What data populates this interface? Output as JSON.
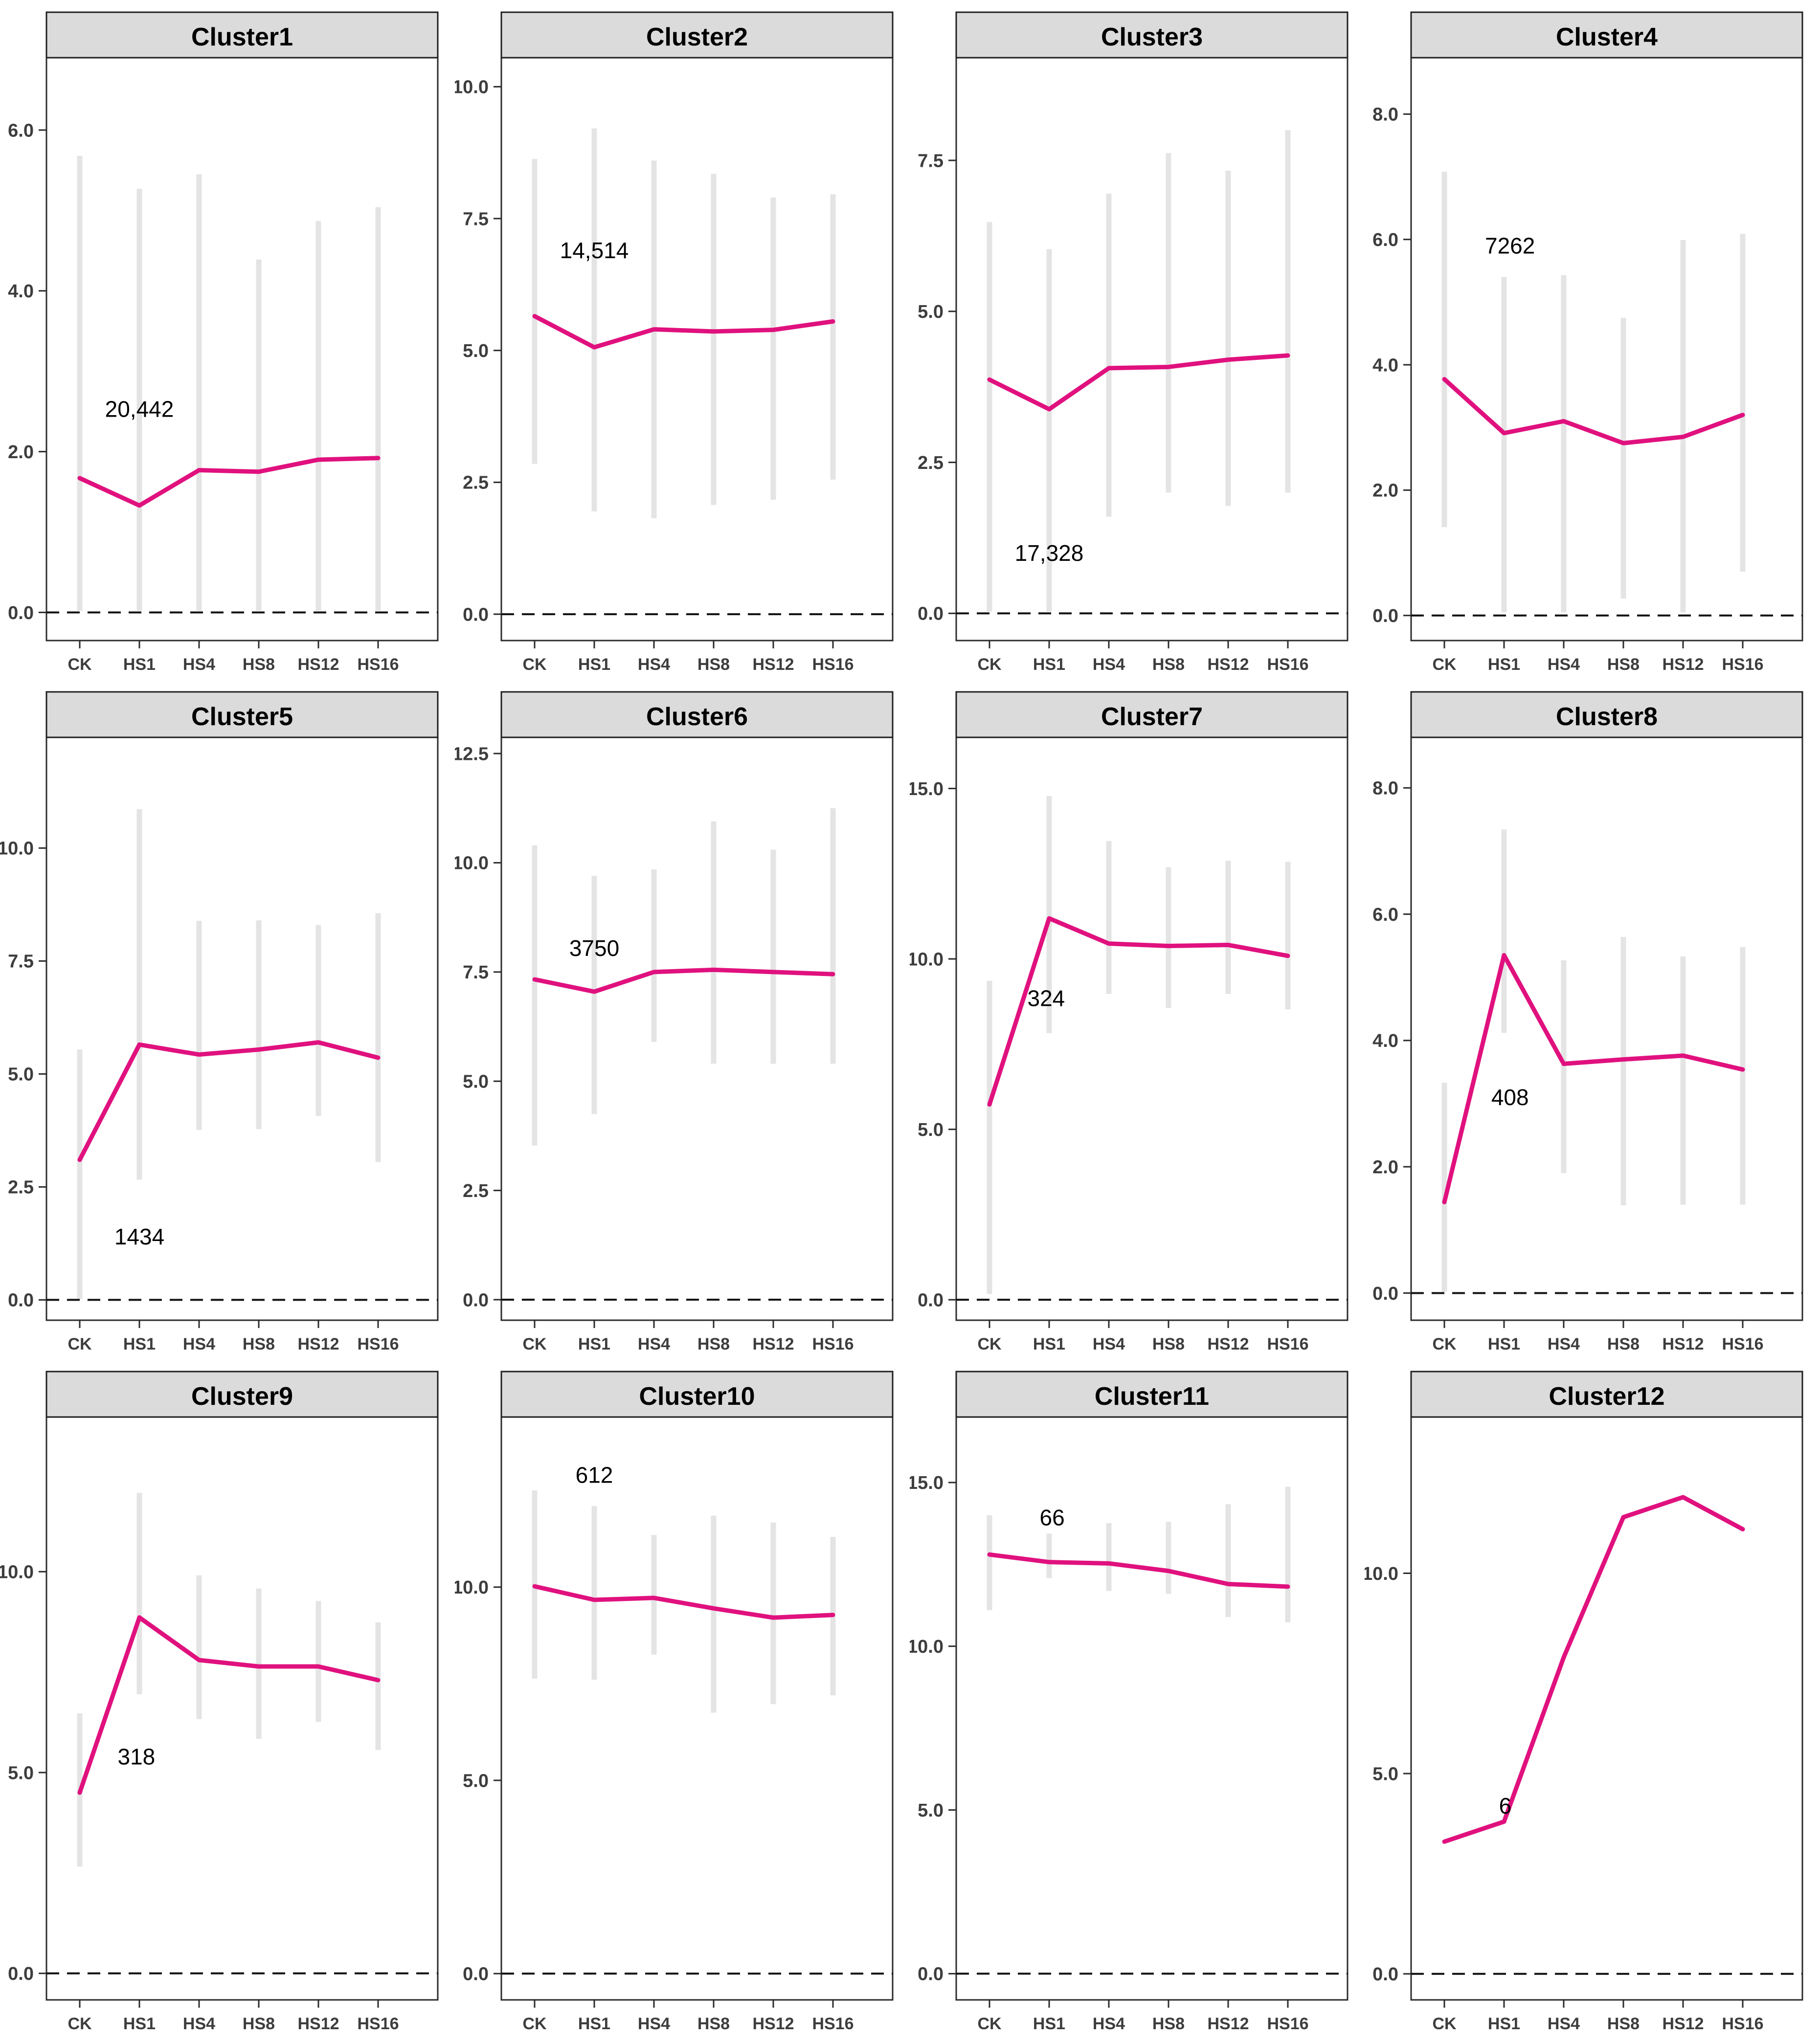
{
  "figure": {
    "title": "Cluster expression trend facets",
    "categories": [
      "CK",
      "HS1",
      "HS4",
      "HS8",
      "HS12",
      "HS16"
    ],
    "colors": {
      "line": "#E0117E",
      "error_bar": "#E4E4E4",
      "strip_bg": "#DBDBDB",
      "strip_border": "#1f1f1f",
      "panel_border": "#2b2b2b",
      "panel_bg": "#ffffff",
      "axis_text": "#3d3d3d",
      "strip_text": "#000000",
      "annotation_text": "#000000",
      "zero_line": "#111111"
    }
  },
  "chart_data": [
    {
      "type": "line",
      "title": "Cluster1",
      "categories": [
        "CK",
        "HS1",
        "HS4",
        "HS8",
        "HS12",
        "HS16"
      ],
      "values": [
        1.67,
        1.33,
        1.77,
        1.75,
        1.9,
        1.92
      ],
      "err_low": [
        0.02,
        0.02,
        0.02,
        0.02,
        0.02,
        0.02
      ],
      "err_high": [
        5.68,
        5.27,
        5.45,
        4.39,
        4.87,
        5.04
      ],
      "yticks": [
        0,
        2,
        4,
        6
      ],
      "ytick_labels": [
        "0.0",
        "2.0",
        "4.0",
        "6.0"
      ],
      "ylim": [
        -0.35,
        6.9
      ],
      "annotation": {
        "text": "20,442",
        "x": 1,
        "y": 2.53
      }
    },
    {
      "type": "line",
      "title": "Cluster2",
      "categories": [
        "CK",
        "HS1",
        "HS4",
        "HS8",
        "HS12",
        "HS16"
      ],
      "values": [
        5.65,
        5.06,
        5.4,
        5.36,
        5.39,
        5.55
      ],
      "err_low": [
        2.85,
        1.95,
        1.82,
        2.07,
        2.17,
        2.55
      ],
      "err_high": [
        8.63,
        9.21,
        8.6,
        8.35,
        7.9,
        7.96
      ],
      "yticks": [
        0,
        2.5,
        5,
        7.5,
        10
      ],
      "ytick_labels": [
        "0.0",
        "2.5",
        "5.0",
        "7.5",
        "10.0"
      ],
      "ylim": [
        -0.5,
        10.55
      ],
      "annotation": {
        "text": "14,514",
        "x": 1,
        "y": 6.9
      }
    },
    {
      "type": "line",
      "title": "Cluster3",
      "categories": [
        "CK",
        "HS1",
        "HS4",
        "HS8",
        "HS12",
        "HS16"
      ],
      "values": [
        3.87,
        3.38,
        4.06,
        4.08,
        4.2,
        4.27
      ],
      "err_low": [
        0.03,
        0.03,
        1.6,
        2.0,
        1.78,
        2.0
      ],
      "err_high": [
        6.48,
        6.03,
        6.95,
        7.62,
        7.33,
        8.0
      ],
      "yticks": [
        0,
        2.5,
        5,
        7.5
      ],
      "ytick_labels": [
        "0.0",
        "2.5",
        "5.0",
        "7.5"
      ],
      "ylim": [
        -0.45,
        9.2
      ],
      "annotation": {
        "text": "17,328",
        "x": 1,
        "y": 1.0
      }
    },
    {
      "type": "line",
      "title": "Cluster4",
      "categories": [
        "CK",
        "HS1",
        "HS4",
        "HS8",
        "HS12",
        "HS16"
      ],
      "values": [
        3.77,
        2.91,
        3.1,
        2.75,
        2.85,
        3.2
      ],
      "err_low": [
        1.41,
        0.05,
        0.05,
        0.27,
        0.05,
        0.7
      ],
      "err_high": [
        7.08,
        5.4,
        5.43,
        4.75,
        5.99,
        6.09
      ],
      "yticks": [
        0,
        2,
        4,
        6,
        8
      ],
      "ytick_labels": [
        "0.0",
        "2.0",
        "4.0",
        "6.0",
        "8.0"
      ],
      "ylim": [
        -0.4,
        8.9
      ],
      "annotation": {
        "text": "7262",
        "x": 1.1,
        "y": 5.9
      }
    },
    {
      "type": "line",
      "title": "Cluster5",
      "categories": [
        "CK",
        "HS1",
        "HS4",
        "HS8",
        "HS12",
        "HS16"
      ],
      "values": [
        3.1,
        5.65,
        5.43,
        5.54,
        5.7,
        5.36
      ],
      "err_low": [
        0.02,
        2.66,
        3.76,
        3.78,
        4.07,
        3.05
      ],
      "err_high": [
        5.54,
        10.86,
        8.39,
        8.4,
        8.3,
        8.56
      ],
      "yticks": [
        0,
        2.5,
        5,
        7.5,
        10
      ],
      "ytick_labels": [
        "0.0",
        "2.5",
        "5.0",
        "7.5",
        "10.0"
      ],
      "ylim": [
        -0.45,
        12.45
      ],
      "annotation": {
        "text": "1434",
        "x": 1,
        "y": 1.4
      }
    },
    {
      "type": "line",
      "title": "Cluster6",
      "categories": [
        "CK",
        "HS1",
        "HS4",
        "HS8",
        "HS12",
        "HS16"
      ],
      "values": [
        7.33,
        7.05,
        7.5,
        7.55,
        7.5,
        7.45
      ],
      "err_low": [
        3.53,
        4.25,
        5.9,
        5.4,
        5.4,
        5.4
      ],
      "err_high": [
        10.4,
        9.7,
        9.85,
        10.95,
        10.3,
        11.25
      ],
      "yticks": [
        0,
        2.5,
        5,
        7.5,
        10,
        12.5
      ],
      "ytick_labels": [
        "0.0",
        "2.5",
        "5.0",
        "7.5",
        "10.0",
        "12.5"
      ],
      "ylim": [
        -0.47,
        12.87
      ],
      "annotation": {
        "text": "3750",
        "x": 1,
        "y": 8.05
      }
    },
    {
      "type": "line",
      "title": "Cluster7",
      "categories": [
        "CK",
        "HS1",
        "HS4",
        "HS8",
        "HS12",
        "HS16"
      ],
      "values": [
        5.73,
        11.19,
        10.45,
        10.38,
        10.41,
        10.09
      ],
      "err_low": [
        0.17,
        7.82,
        8.97,
        8.56,
        8.97,
        8.52
      ],
      "err_high": [
        9.36,
        14.78,
        13.46,
        12.69,
        12.88,
        12.85
      ],
      "yticks": [
        0,
        5,
        10,
        15
      ],
      "ytick_labels": [
        "0.0",
        "5.0",
        "10.0",
        "15.0"
      ],
      "ylim": [
        -0.6,
        16.5
      ],
      "annotation": {
        "text": "324",
        "x": 0.95,
        "y": 8.85
      }
    },
    {
      "type": "line",
      "title": "Cluster8",
      "categories": [
        "CK",
        "HS1",
        "HS4",
        "HS8",
        "HS12",
        "HS16"
      ],
      "values": [
        1.44,
        5.35,
        3.63,
        3.7,
        3.76,
        3.54
      ],
      "err_low": [
        0.02,
        4.12,
        1.9,
        1.39,
        1.4,
        1.4
      ],
      "err_high": [
        3.33,
        7.34,
        5.27,
        5.64,
        5.33,
        5.48
      ],
      "yticks": [
        0,
        2,
        4,
        6,
        8
      ],
      "ytick_labels": [
        "0.0",
        "2.0",
        "4.0",
        "6.0",
        "8.0"
      ],
      "ylim": [
        -0.43,
        8.8
      ],
      "annotation": {
        "text": "408",
        "x": 1.1,
        "y": 3.1
      }
    },
    {
      "type": "line",
      "title": "Cluster9",
      "categories": [
        "CK",
        "HS1",
        "HS4",
        "HS8",
        "HS12",
        "HS16"
      ],
      "values": [
        4.5,
        8.86,
        7.8,
        7.64,
        7.64,
        7.3
      ],
      "err_low": [
        2.66,
        6.95,
        6.33,
        5.84,
        6.26,
        5.56
      ],
      "err_high": [
        6.47,
        11.96,
        9.91,
        9.58,
        9.27,
        8.74
      ],
      "yticks": [
        0,
        5,
        10
      ],
      "ytick_labels": [
        "0.0",
        "5.0",
        "10.0"
      ],
      "ylim": [
        -0.66,
        13.85
      ],
      "annotation": {
        "text": "318",
        "x": 0.95,
        "y": 5.4
      }
    },
    {
      "type": "line",
      "title": "Cluster10",
      "categories": [
        "CK",
        "HS1",
        "HS4",
        "HS8",
        "HS12",
        "HS16"
      ],
      "values": [
        10.02,
        9.67,
        9.72,
        9.45,
        9.21,
        9.28
      ],
      "err_low": [
        7.63,
        7.6,
        8.25,
        6.75,
        6.97,
        7.2
      ],
      "err_high": [
        12.5,
        12.1,
        11.35,
        11.85,
        11.67,
        11.3
      ],
      "yticks": [
        0,
        5,
        10
      ],
      "ytick_labels": [
        "0.0",
        "5.0",
        "10.0"
      ],
      "ylim": [
        -0.68,
        14.4
      ],
      "annotation": {
        "text": "612",
        "x": 1,
        "y": 12.9
      }
    },
    {
      "type": "line",
      "title": "Cluster11",
      "categories": [
        "CK",
        "HS1",
        "HS4",
        "HS8",
        "HS12",
        "HS16"
      ],
      "values": [
        12.8,
        12.57,
        12.53,
        12.3,
        11.9,
        11.82
      ],
      "err_low": [
        11.1,
        12.08,
        11.69,
        11.6,
        10.89,
        10.73
      ],
      "err_high": [
        14.0,
        13.44,
        13.76,
        13.8,
        14.34,
        14.87
      ],
      "yticks": [
        0,
        5,
        10,
        15
      ],
      "ytick_labels": [
        "0.0",
        "5.0",
        "10.0",
        "15.0"
      ],
      "ylim": [
        -0.8,
        17.0
      ],
      "annotation": {
        "text": "66",
        "x": 1.05,
        "y": 13.93
      }
    },
    {
      "type": "line",
      "title": "Cluster12",
      "categories": [
        "CK",
        "HS1",
        "HS4",
        "HS8",
        "HS12",
        "HS16"
      ],
      "values": [
        3.3,
        3.8,
        7.9,
        11.4,
        11.9,
        11.1
      ],
      "err_low": null,
      "err_high": null,
      "yticks": [
        0,
        5,
        10
      ],
      "ytick_labels": [
        "0.0",
        "5.0",
        "10.0"
      ],
      "ylim": [
        -0.65,
        13.9
      ],
      "annotation": {
        "text": "6",
        "x": 1.02,
        "y": 4.2
      }
    }
  ]
}
